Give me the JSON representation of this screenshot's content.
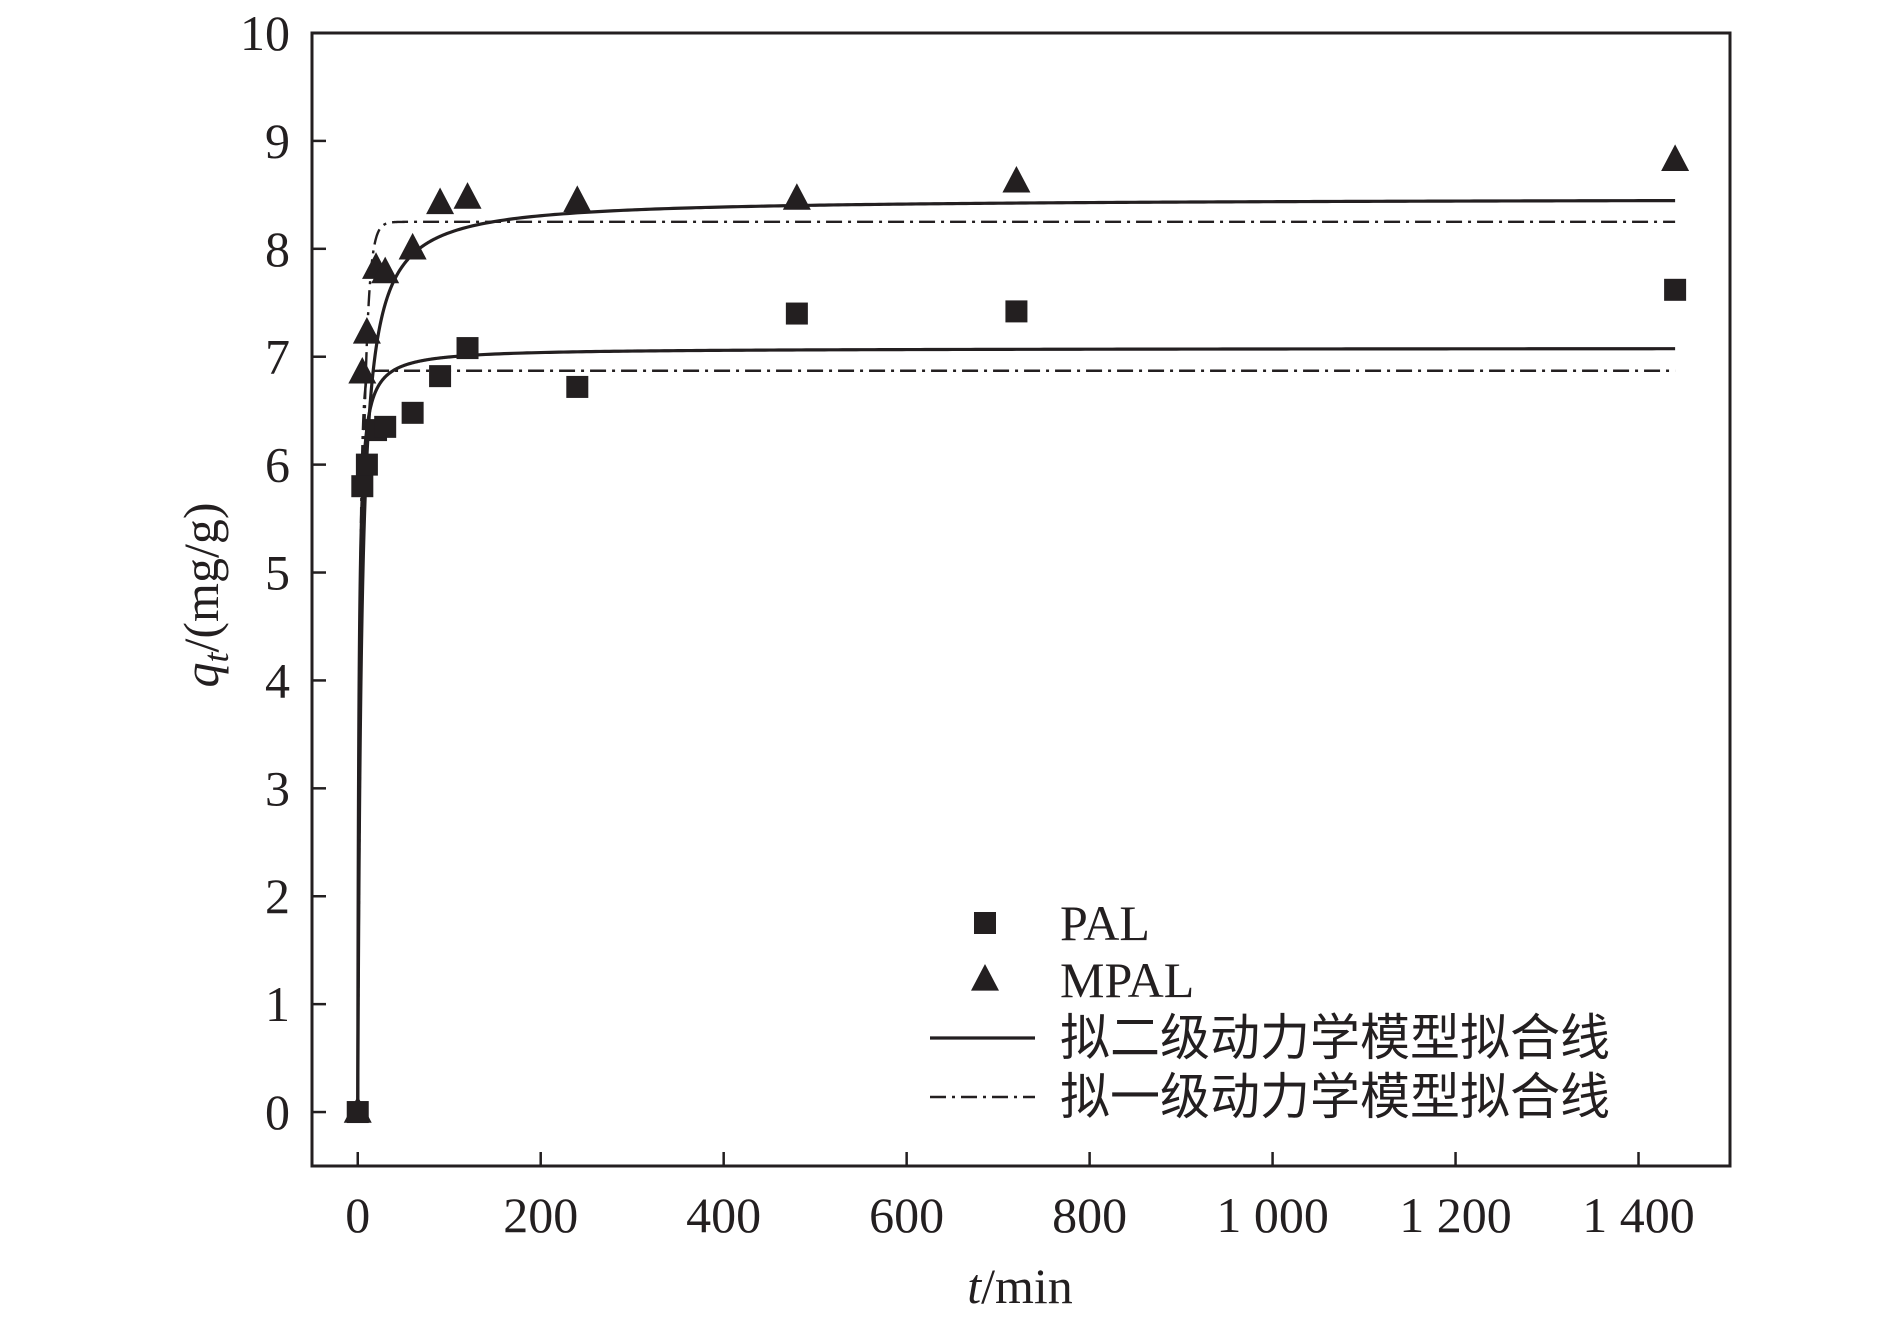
{
  "chart_data": {
    "type": "scatter",
    "title": "",
    "xlabel_italic": "t",
    "xlabel_rest": "/min",
    "ylabel_italic": "q",
    "ylabel_sub": "t",
    "ylabel_rest": "/(mg/g)",
    "xlim": [
      -50,
      1500
    ],
    "ylim": [
      -0.5,
      10
    ],
    "x_ticks": [
      0,
      200,
      400,
      600,
      800,
      1000,
      1200,
      1400
    ],
    "x_tick_labels": [
      "0",
      "200",
      "400",
      "600",
      "800",
      "1 000",
      "1 200",
      "1 400"
    ],
    "y_ticks": [
      0,
      1,
      2,
      3,
      4,
      5,
      6,
      7,
      8,
      9,
      10
    ],
    "y_tick_labels": [
      "0",
      "1",
      "2",
      "3",
      "4",
      "5",
      "6",
      "7",
      "8",
      "9",
      "10"
    ],
    "grid": false,
    "legend_position": "bottom-right",
    "series": [
      {
        "name": "PAL",
        "marker": "square",
        "x": [
          0,
          5,
          10,
          20,
          30,
          60,
          90,
          120,
          240,
          480,
          720,
          1440
        ],
        "y": [
          0,
          5.8,
          6.0,
          6.32,
          6.35,
          6.48,
          6.82,
          7.08,
          6.72,
          7.4,
          7.42,
          7.62
        ]
      },
      {
        "name": "MPAL",
        "marker": "triangle",
        "x": [
          0,
          5,
          10,
          20,
          30,
          60,
          90,
          120,
          240,
          480,
          720,
          1440
        ],
        "y": [
          0,
          6.85,
          7.22,
          7.82,
          7.78,
          8.0,
          8.42,
          8.47,
          8.44,
          8.46,
          8.62,
          8.82
        ]
      }
    ],
    "fits": [
      {
        "name": "拟二级动力学模型拟合线",
        "style": "solid",
        "model": "pseudo-second-order",
        "curves": [
          {
            "for": "PAL",
            "qe": 7.08,
            "k": 0.12
          },
          {
            "for": "MPAL",
            "qe": 8.47,
            "k": 0.03
          }
        ]
      },
      {
        "name": "拟一级动力学模型拟合线",
        "style": "dash-dot",
        "model": "pseudo-first-order",
        "curves": [
          {
            "for": "PAL",
            "qe": 6.87,
            "k": 0.45
          },
          {
            "for": "MPAL",
            "qe": 8.25,
            "k": 0.2
          }
        ]
      }
    ],
    "fit_t_max": 1440
  }
}
